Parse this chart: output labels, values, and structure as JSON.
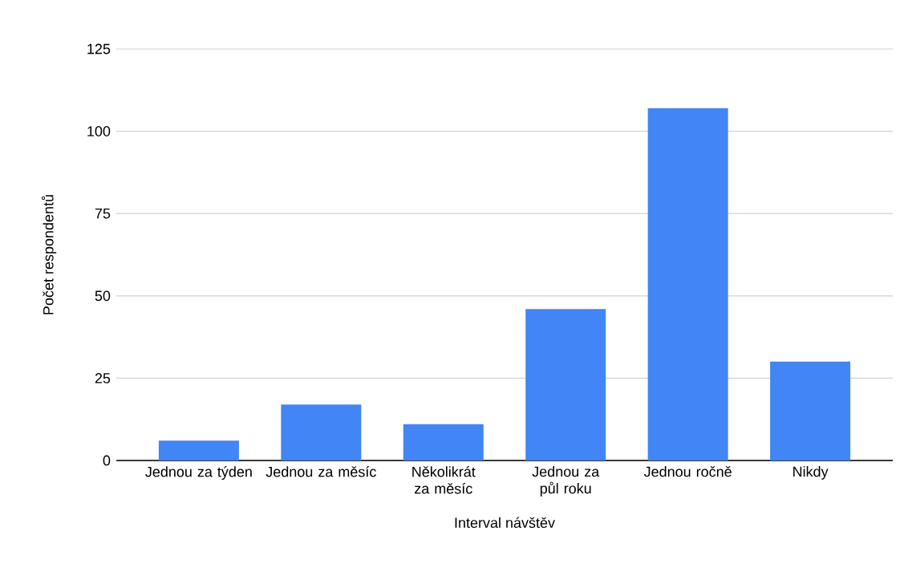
{
  "chart_data": {
    "type": "bar",
    "xlabel": "Interval návštěv",
    "ylabel": "Počet respondentů",
    "categories": [
      "Jednou za týden",
      "Jednou za měsíc",
      "Několikrát za měsíc",
      "Jednou za půl roku",
      "Jednou ročně",
      "Nikdy"
    ],
    "values": [
      6,
      17,
      11,
      46,
      107,
      30
    ],
    "color": "#4285f4",
    "ylim": [
      0,
      125
    ],
    "yticks": [
      0,
      25,
      50,
      75,
      100,
      125
    ],
    "grid": "y"
  }
}
